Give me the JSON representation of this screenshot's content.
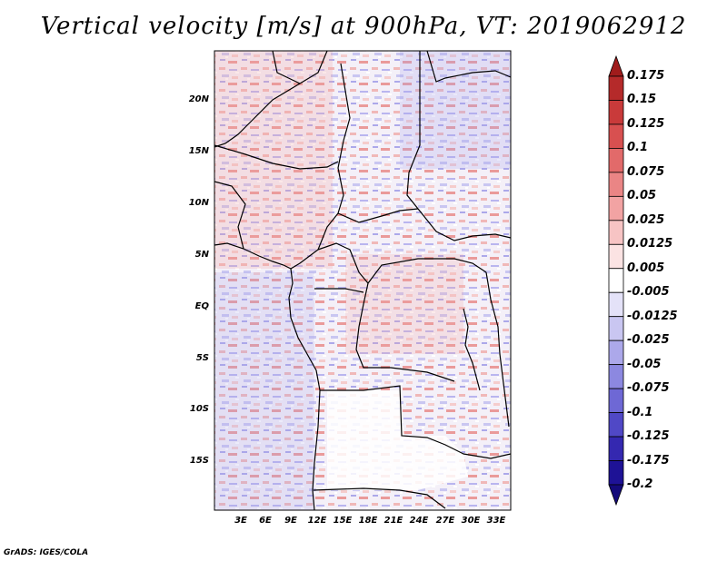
{
  "title": "Vertical velocity [m/s] at 900hPa, VT: 2019062912",
  "credit": "GrADS: IGES/COLA",
  "map": {
    "lat_labels": [
      "20N",
      "15N",
      "10N",
      "5N",
      "EQ",
      "5S",
      "10S",
      "15S"
    ],
    "lon_labels": [
      "3E",
      "6E",
      "9E",
      "12E",
      "15E",
      "18E",
      "21E",
      "24E",
      "27E",
      "30E",
      "33E"
    ]
  },
  "colorbar": {
    "levels": [
      "0.175",
      "0.15",
      "0.125",
      "0.1",
      "0.075",
      "0.05",
      "0.025",
      "0.0125",
      "0.005",
      "-0.005",
      "-0.0125",
      "-0.025",
      "-0.05",
      "-0.075",
      "-0.1",
      "-0.125",
      "-0.175",
      "-0.2"
    ],
    "colors": [
      "#a01c1c",
      "#b52a2a",
      "#c93a3a",
      "#d85050",
      "#e26a6a",
      "#ea8585",
      "#f2a3a3",
      "#f7c4c4",
      "#fbe3e3",
      "#ffffff",
      "#e4e2f8",
      "#c9c6f1",
      "#aca8ea",
      "#8c88e0",
      "#6e68d5",
      "#5048c6",
      "#3428b0",
      "#1e1296",
      "#140a7a"
    ]
  }
}
